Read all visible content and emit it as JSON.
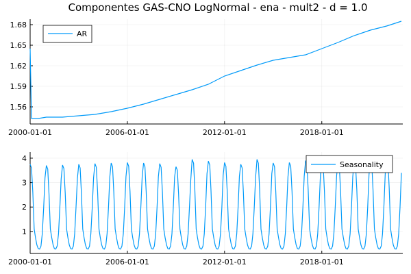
{
  "title": "Componentes GAS-CNO LogNormal - ena - mult2 - d = 1.0",
  "colors": {
    "series": "#009af9",
    "axis": "#000000",
    "background": "#ffffff"
  },
  "chart_data": [
    {
      "type": "line",
      "name": "ar-panel",
      "x_type": "date",
      "xlim": [
        "2000-01-01",
        "2023-01-01"
      ],
      "x_ticks": [
        "2000-01-01",
        "2006-01-01",
        "2012-01-01",
        "2018-01-01"
      ],
      "ylim": [
        1.535,
        1.688
      ],
      "y_ticks": [
        1.56,
        1.59,
        1.62,
        1.65,
        1.68
      ],
      "y_tick_labels": [
        "1.56",
        "1.59",
        "1.62",
        "1.65",
        "1.68"
      ],
      "grid": true,
      "legend": {
        "position": "top-left",
        "entries": [
          "AR"
        ]
      },
      "series": [
        {
          "name": "AR",
          "x": [
            "2000-01-01",
            "2000-02-01",
            "2000-07-01",
            "2001-01-01",
            "2002-01-01",
            "2003-01-01",
            "2004-01-01",
            "2005-01-01",
            "2006-01-01",
            "2007-01-01",
            "2008-01-01",
            "2009-01-01",
            "2010-01-01",
            "2011-01-01",
            "2012-01-01",
            "2013-01-01",
            "2014-01-01",
            "2015-01-01",
            "2016-01-01",
            "2017-01-01",
            "2018-01-01",
            "2019-01-01",
            "2020-01-01",
            "2021-01-01",
            "2022-01-01",
            "2022-12-01"
          ],
          "values": [
            1.645,
            1.543,
            1.543,
            1.545,
            1.545,
            1.547,
            1.549,
            1.553,
            1.558,
            1.564,
            1.571,
            1.578,
            1.585,
            1.593,
            1.605,
            1.613,
            1.621,
            1.628,
            1.632,
            1.636,
            1.645,
            1.654,
            1.664,
            1.672,
            1.678,
            1.685
          ]
        }
      ]
    },
    {
      "type": "line",
      "name": "seasonality-panel",
      "x_type": "date",
      "xlim": [
        "2000-01-01",
        "2023-01-01"
      ],
      "x_ticks": [
        "2000-01-01",
        "2006-01-01",
        "2012-01-01",
        "2018-01-01"
      ],
      "ylim": [
        0.1,
        4.25
      ],
      "y_ticks": [
        1,
        2,
        3,
        4
      ],
      "y_tick_labels": [
        "1",
        "2",
        "3",
        "4"
      ],
      "grid": true,
      "legend": {
        "position": "top-right",
        "entries": [
          "Seasonality"
        ]
      },
      "series": [
        {
          "name": "Seasonality",
          "period_months": 12,
          "start": "2000-01-01",
          "months": 276,
          "monthly_profile": [
            3.75,
            3.6,
            2.6,
            1.1,
            0.75,
            0.45,
            0.3,
            0.28,
            0.4,
            0.9,
            2.0,
            3.2
          ],
          "peaks": [
            3.75,
            3.7,
            3.72,
            3.75,
            3.78,
            3.8,
            3.82,
            3.8,
            3.78,
            3.65,
            3.95,
            3.88,
            3.82,
            3.75,
            3.95,
            3.8,
            3.82,
            3.9,
            3.85,
            3.8,
            3.9,
            3.95,
            3.98
          ]
        }
      ]
    }
  ]
}
